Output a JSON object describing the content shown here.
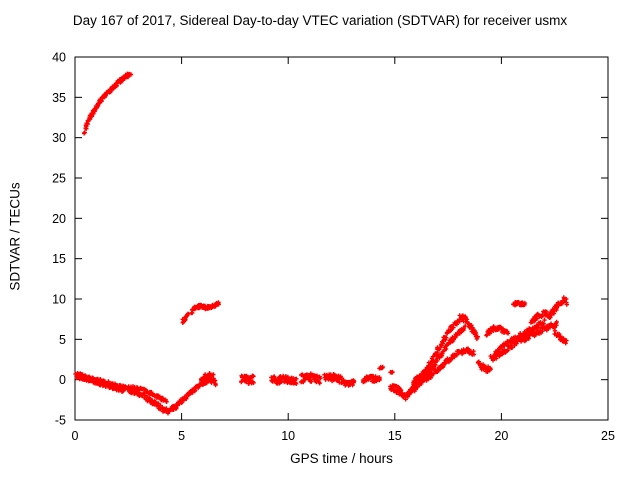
{
  "chart_data": {
    "type": "scatter",
    "title": "Day 167 of 2017, Sidereal Day-to-day VTEC variation (SDTVAR) for receiver usmx",
    "xlabel": "GPS time / hours",
    "ylabel": "SDTVAR / TECUs",
    "xlim": [
      0,
      25
    ],
    "ylim": [
      -5,
      40
    ],
    "xticks": [
      0,
      5,
      10,
      15,
      20,
      25
    ],
    "yticks": [
      -5,
      0,
      5,
      10,
      15,
      20,
      25,
      30,
      35,
      40
    ],
    "grid": false,
    "legend": "none",
    "marker": "plus",
    "marker_color": "#ff0000",
    "axis_color": "#000000",
    "tracks": [
      {
        "spread": 0.22,
        "density": 60,
        "points": [
          [
            0.45,
            30.7
          ],
          [
            0.55,
            31.6
          ],
          [
            0.7,
            32.5
          ],
          [
            0.9,
            33.4
          ],
          [
            1.1,
            34.2
          ],
          [
            1.3,
            34.9
          ],
          [
            1.5,
            35.5
          ],
          [
            1.7,
            36.0
          ],
          [
            1.9,
            36.5
          ],
          [
            2.1,
            37.0
          ],
          [
            2.3,
            37.4
          ],
          [
            2.45,
            37.7
          ],
          [
            2.6,
            37.9
          ]
        ]
      },
      {
        "spread": 0.3,
        "density": 60,
        "points": [
          [
            5.05,
            7.2
          ],
          [
            5.15,
            7.6
          ],
          [
            5.3,
            7.9
          ]
        ]
      },
      {
        "spread": 0.2,
        "density": 45,
        "points": [
          [
            5.45,
            8.4
          ],
          [
            5.6,
            8.9
          ],
          [
            5.8,
            9.1
          ],
          [
            6.0,
            9.0
          ],
          [
            6.2,
            8.9
          ],
          [
            6.4,
            9.1
          ],
          [
            6.6,
            9.3
          ],
          [
            6.75,
            9.5
          ]
        ]
      },
      {
        "spread": 0.25,
        "density": 40,
        "points": [
          [
            0.05,
            0.6
          ],
          [
            0.3,
            0.5
          ],
          [
            0.6,
            0.2
          ],
          [
            0.9,
            0.0
          ],
          [
            1.2,
            -0.2
          ],
          [
            1.5,
            -0.4
          ],
          [
            1.8,
            -0.7
          ],
          [
            2.1,
            -0.9
          ],
          [
            2.4,
            -1.1
          ]
        ]
      },
      {
        "spread": 0.2,
        "density": 35,
        "points": [
          [
            0.1,
            0.3
          ],
          [
            0.5,
            0.1
          ],
          [
            1.0,
            -0.3
          ],
          [
            1.5,
            -0.8
          ],
          [
            2.0,
            -1.2
          ],
          [
            2.3,
            -1.4
          ]
        ]
      },
      {
        "spread": 0.3,
        "density": 40,
        "points": [
          [
            2.5,
            -1.2
          ],
          [
            2.8,
            -1.5
          ],
          [
            3.1,
            -1.8
          ],
          [
            3.4,
            -2.3
          ],
          [
            3.7,
            -2.9
          ],
          [
            4.0,
            -3.4
          ],
          [
            4.2,
            -3.8
          ],
          [
            4.4,
            -3.9
          ],
          [
            4.6,
            -3.6
          ],
          [
            4.8,
            -3.2
          ],
          [
            5.0,
            -2.7
          ],
          [
            5.2,
            -2.2
          ],
          [
            5.4,
            -1.7
          ],
          [
            5.6,
            -1.2
          ],
          [
            5.8,
            -0.8
          ],
          [
            6.0,
            -0.4
          ],
          [
            6.2,
            -0.1
          ],
          [
            6.35,
            0.1
          ]
        ]
      },
      {
        "spread": 0.2,
        "density": 30,
        "points": [
          [
            2.5,
            -0.9
          ],
          [
            2.9,
            -1.1
          ],
          [
            3.3,
            -1.4
          ],
          [
            3.7,
            -1.9
          ],
          [
            4.0,
            -2.3
          ],
          [
            4.3,
            -2.6
          ]
        ]
      },
      {
        "spread": 0.55,
        "density": 55,
        "points": [
          [
            5.9,
            -0.2
          ],
          [
            6.1,
            0.1
          ],
          [
            6.3,
            0.3
          ],
          [
            6.5,
            0.1
          ],
          [
            6.6,
            -0.2
          ]
        ]
      },
      {
        "spread": 0.55,
        "density": 55,
        "points": [
          [
            7.8,
            0.0
          ],
          [
            8.0,
            0.2
          ],
          [
            8.2,
            -0.1
          ],
          [
            8.4,
            0.1
          ]
        ]
      },
      {
        "spread": 0.45,
        "density": 50,
        "points": [
          [
            9.2,
            0.0
          ],
          [
            9.5,
            -0.1
          ],
          [
            9.8,
            0.1
          ],
          [
            10.1,
            0.0
          ],
          [
            10.4,
            -0.1
          ]
        ]
      },
      {
        "spread": 0.5,
        "density": 55,
        "points": [
          [
            10.6,
            0.1
          ],
          [
            10.9,
            0.3
          ],
          [
            11.2,
            0.2
          ],
          [
            11.5,
            0.0
          ]
        ]
      },
      {
        "spread": 0.45,
        "density": 50,
        "points": [
          [
            11.7,
            0.2
          ],
          [
            12.0,
            0.3
          ],
          [
            12.3,
            0.1
          ],
          [
            12.6,
            -0.1
          ]
        ]
      },
      {
        "spread": 0.3,
        "density": 40,
        "points": [
          [
            12.6,
            -0.4
          ],
          [
            12.9,
            -0.5
          ],
          [
            13.1,
            -0.3
          ]
        ]
      },
      {
        "spread": 0.4,
        "density": 50,
        "points": [
          [
            13.5,
            -0.1
          ],
          [
            13.8,
            0.1
          ],
          [
            14.1,
            0.0
          ],
          [
            14.3,
            0.2
          ]
        ]
      },
      {
        "spread": 0.15,
        "density": 30,
        "points": [
          [
            14.3,
            1.5
          ],
          [
            14.45,
            1.6
          ]
        ]
      },
      {
        "spread": 0.45,
        "density": 55,
        "points": [
          [
            14.8,
            -0.9
          ],
          [
            15.0,
            -1.1
          ],
          [
            15.2,
            -1.4
          ],
          [
            15.35,
            -1.8
          ],
          [
            15.45,
            -2.2
          ]
        ]
      },
      {
        "spread": 0.35,
        "density": 40,
        "points": [
          [
            15.5,
            -2.2
          ],
          [
            15.7,
            -1.5
          ],
          [
            15.9,
            -0.8
          ],
          [
            16.1,
            0.0
          ],
          [
            16.4,
            1.0
          ],
          [
            16.7,
            2.2
          ],
          [
            17.0,
            3.6
          ],
          [
            17.3,
            5.0
          ],
          [
            17.6,
            6.2
          ],
          [
            17.9,
            7.2
          ],
          [
            18.1,
            7.7
          ],
          [
            18.3,
            7.5
          ],
          [
            18.5,
            6.8
          ],
          [
            18.7,
            6.0
          ],
          [
            18.9,
            5.2
          ]
        ]
      },
      {
        "spread": 0.3,
        "density": 35,
        "points": [
          [
            15.6,
            -1.8
          ],
          [
            15.9,
            -1.2
          ],
          [
            16.2,
            -0.4
          ],
          [
            16.5,
            0.6
          ],
          [
            16.8,
            1.6
          ],
          [
            17.1,
            2.8
          ],
          [
            17.4,
            4.0
          ],
          [
            17.7,
            5.0
          ],
          [
            18.0,
            5.8
          ],
          [
            18.3,
            6.4
          ]
        ]
      },
      {
        "spread": 0.3,
        "density": 35,
        "points": [
          [
            16.0,
            -0.6
          ],
          [
            16.5,
            0.2
          ],
          [
            17.0,
            1.2
          ],
          [
            17.5,
            2.4
          ],
          [
            18.0,
            3.4
          ],
          [
            18.4,
            3.6
          ],
          [
            18.7,
            3.3
          ]
        ]
      },
      {
        "spread": 0.35,
        "density": 40,
        "points": [
          [
            18.9,
            2.2
          ],
          [
            19.1,
            1.6
          ],
          [
            19.3,
            1.2
          ],
          [
            19.5,
            1.5
          ]
        ]
      },
      {
        "spread": 0.3,
        "density": 40,
        "points": [
          [
            19.3,
            5.6
          ],
          [
            19.5,
            6.1
          ],
          [
            19.7,
            6.4
          ],
          [
            19.9,
            6.4
          ],
          [
            20.1,
            6.1
          ],
          [
            20.3,
            5.7
          ]
        ]
      },
      {
        "spread": 0.35,
        "density": 35,
        "points": [
          [
            19.5,
            2.6
          ],
          [
            19.9,
            3.2
          ],
          [
            20.3,
            3.9
          ],
          [
            20.7,
            4.5
          ],
          [
            21.1,
            5.1
          ],
          [
            21.5,
            5.7
          ],
          [
            21.9,
            6.2
          ],
          [
            22.3,
            6.6
          ],
          [
            22.6,
            6.9
          ]
        ]
      },
      {
        "spread": 0.3,
        "density": 30,
        "points": [
          [
            19.7,
            3.4
          ],
          [
            20.1,
            4.2
          ],
          [
            20.5,
            4.9
          ],
          [
            20.9,
            5.5
          ],
          [
            21.3,
            6.1
          ],
          [
            21.7,
            6.7
          ],
          [
            22.0,
            7.1
          ]
        ]
      },
      {
        "spread": 0.2,
        "density": 45,
        "points": [
          [
            20.55,
            9.3
          ],
          [
            20.75,
            9.5
          ],
          [
            20.95,
            9.4
          ],
          [
            21.1,
            9.3
          ]
        ]
      },
      {
        "spread": 0.35,
        "density": 45,
        "points": [
          [
            22.2,
            7.8
          ],
          [
            22.4,
            8.4
          ],
          [
            22.6,
            9.0
          ],
          [
            22.8,
            9.6
          ],
          [
            22.95,
            9.9
          ],
          [
            23.05,
            9.6
          ]
        ]
      },
      {
        "spread": 0.3,
        "density": 35,
        "points": [
          [
            22.5,
            5.8
          ],
          [
            22.7,
            5.4
          ],
          [
            22.9,
            5.0
          ],
          [
            23.05,
            4.6
          ]
        ]
      },
      {
        "spread": 0.35,
        "density": 35,
        "points": [
          [
            21.4,
            7.2
          ],
          [
            21.7,
            7.8
          ],
          [
            22.0,
            8.2
          ],
          [
            22.2,
            8.0
          ]
        ]
      },
      {
        "spread": 0.4,
        "density": 40,
        "points": [
          [
            15.9,
            -0.2
          ],
          [
            16.1,
            0.1
          ],
          [
            16.3,
            0.4
          ],
          [
            16.5,
            0.2
          ]
        ]
      },
      {
        "spread": 0.1,
        "density": 30,
        "points": [
          [
            14.8,
            0.9
          ],
          [
            14.9,
            1.0
          ]
        ]
      }
    ]
  }
}
